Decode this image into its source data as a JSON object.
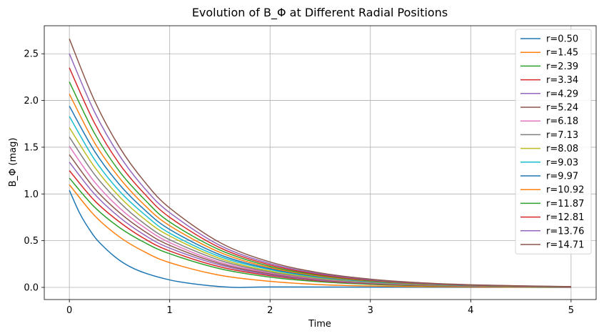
{
  "chart_data": {
    "type": "line",
    "title": "Evolution of B_Φ at Different Radial Positions",
    "xlabel": "Time",
    "ylabel": "B_Φ (mag)",
    "xlim": [
      -0.25,
      5.25
    ],
    "ylim": [
      -0.13,
      2.8
    ],
    "xticks": [
      0,
      1,
      2,
      3,
      4,
      5
    ],
    "yticks": [
      0.0,
      0.5,
      1.0,
      1.5,
      2.0,
      2.5
    ],
    "xtick_labels": [
      "0",
      "1",
      "2",
      "3",
      "4",
      "5"
    ],
    "ytick_labels": [
      "0.0",
      "0.5",
      "1.0",
      "1.5",
      "2.0",
      "2.5"
    ],
    "grid": true,
    "legend_position": "top-right",
    "series": [
      {
        "name": "r=0.50",
        "color": "#1f77b4",
        "x": [
          0,
          0.1,
          0.2,
          0.3,
          0.5,
          0.7,
          1.0,
          1.3,
          1.65,
          2.0,
          3.0,
          4.0,
          5.0
        ],
        "values": [
          1.04,
          0.8,
          0.62,
          0.48,
          0.29,
          0.175,
          0.08,
          0.03,
          0.0,
          0.005,
          0.003,
          0.001,
          0.0
        ]
      },
      {
        "name": "r=1.45",
        "color": "#ff7f0e",
        "x": [
          0,
          0.25,
          0.5,
          0.75,
          1.0,
          1.5,
          2.0,
          2.5,
          3.0,
          3.5,
          4.0,
          4.5,
          5.0
        ],
        "values": [
          1.1,
          0.77,
          0.54,
          0.38,
          0.265,
          0.13,
          0.065,
          0.03,
          0.015,
          0.008,
          0.004,
          0.002,
          0.001
        ]
      },
      {
        "name": "r=2.39",
        "color": "#2ca02c",
        "x": [
          0,
          0.25,
          0.5,
          0.75,
          1.0,
          1.5,
          2.0,
          2.5,
          3.0,
          3.5,
          4.0,
          4.5,
          5.0
        ],
        "values": [
          1.17,
          0.86,
          0.64,
          0.48,
          0.36,
          0.2,
          0.11,
          0.06,
          0.033,
          0.018,
          0.01,
          0.005,
          0.003
        ]
      },
      {
        "name": "r=3.34",
        "color": "#d62728",
        "x": [
          0,
          0.25,
          0.5,
          0.75,
          1.0,
          1.5,
          2.0,
          2.5,
          3.0,
          3.5,
          4.0,
          4.5,
          5.0
        ],
        "values": [
          1.25,
          0.93,
          0.7,
          0.52,
          0.39,
          0.22,
          0.125,
          0.07,
          0.04,
          0.022,
          0.012,
          0.007,
          0.004
        ]
      },
      {
        "name": "r=4.29",
        "color": "#9467bd",
        "x": [
          0,
          0.25,
          0.5,
          0.75,
          1.0,
          1.5,
          2.0,
          2.5,
          3.0,
          3.5,
          4.0,
          4.5,
          5.0
        ],
        "values": [
          1.34,
          1.0,
          0.75,
          0.56,
          0.42,
          0.24,
          0.135,
          0.076,
          0.043,
          0.024,
          0.013,
          0.008,
          0.004
        ]
      },
      {
        "name": "r=5.24",
        "color": "#8c564b",
        "x": [
          0,
          0.25,
          0.5,
          0.75,
          1.0,
          1.5,
          2.0,
          2.5,
          3.0,
          3.5,
          4.0,
          4.5,
          5.0
        ],
        "values": [
          1.42,
          1.06,
          0.8,
          0.6,
          0.45,
          0.255,
          0.145,
          0.082,
          0.046,
          0.026,
          0.015,
          0.008,
          0.005
        ]
      },
      {
        "name": "r=6.18",
        "color": "#e377c2",
        "x": [
          0,
          0.25,
          0.5,
          0.75,
          1.0,
          1.5,
          2.0,
          2.5,
          3.0,
          3.5,
          4.0,
          4.5,
          5.0
        ],
        "values": [
          1.51,
          1.13,
          0.85,
          0.64,
          0.48,
          0.27,
          0.155,
          0.088,
          0.05,
          0.028,
          0.016,
          0.009,
          0.005
        ]
      },
      {
        "name": "r=7.13",
        "color": "#7f7f7f",
        "x": [
          0,
          0.25,
          0.5,
          0.75,
          1.0,
          1.5,
          2.0,
          2.5,
          3.0,
          3.5,
          4.0,
          4.5,
          5.0
        ],
        "values": [
          1.61,
          1.21,
          0.91,
          0.68,
          0.51,
          0.29,
          0.165,
          0.094,
          0.053,
          0.03,
          0.017,
          0.01,
          0.006
        ]
      },
      {
        "name": "r=8.08",
        "color": "#bcbd22",
        "x": [
          0,
          0.25,
          0.5,
          0.75,
          1.0,
          1.5,
          2.0,
          2.5,
          3.0,
          3.5,
          4.0,
          4.5,
          5.0
        ],
        "values": [
          1.71,
          1.29,
          0.97,
          0.73,
          0.55,
          0.31,
          0.175,
          0.1,
          0.057,
          0.032,
          0.018,
          0.01,
          0.006
        ]
      },
      {
        "name": "r=9.03",
        "color": "#17becf",
        "x": [
          0,
          0.25,
          0.5,
          0.75,
          1.0,
          1.5,
          2.0,
          2.5,
          3.0,
          3.5,
          4.0,
          4.5,
          5.0
        ],
        "values": [
          1.83,
          1.37,
          1.03,
          0.78,
          0.58,
          0.33,
          0.19,
          0.107,
          0.06,
          0.034,
          0.019,
          0.011,
          0.006
        ]
      },
      {
        "name": "r=9.97",
        "color": "#1f77b4",
        "x": [
          0,
          0.25,
          0.5,
          0.75,
          1.0,
          1.5,
          2.0,
          2.5,
          3.0,
          3.5,
          4.0,
          4.5,
          5.0
        ],
        "values": [
          1.94,
          1.46,
          1.1,
          0.83,
          0.62,
          0.35,
          0.2,
          0.113,
          0.064,
          0.036,
          0.02,
          0.012,
          0.007
        ]
      },
      {
        "name": "r=10.92",
        "color": "#ff7f0e",
        "x": [
          0,
          0.25,
          0.5,
          0.75,
          1.0,
          1.5,
          2.0,
          2.5,
          3.0,
          3.5,
          4.0,
          4.5,
          5.0
        ],
        "values": [
          2.07,
          1.55,
          1.17,
          0.88,
          0.66,
          0.375,
          0.212,
          0.12,
          0.068,
          0.038,
          0.022,
          0.012,
          0.007
        ]
      },
      {
        "name": "r=11.87",
        "color": "#2ca02c",
        "x": [
          0,
          0.25,
          0.5,
          0.75,
          1.0,
          1.5,
          2.0,
          2.5,
          3.0,
          3.5,
          4.0,
          4.5,
          5.0
        ],
        "values": [
          2.2,
          1.65,
          1.24,
          0.94,
          0.7,
          0.4,
          0.225,
          0.128,
          0.072,
          0.041,
          0.023,
          0.013,
          0.007
        ]
      },
      {
        "name": "r=12.81",
        "color": "#d62728",
        "x": [
          0,
          0.25,
          0.5,
          0.75,
          1.0,
          1.5,
          2.0,
          2.5,
          3.0,
          3.5,
          4.0,
          4.5,
          5.0
        ],
        "values": [
          2.35,
          1.76,
          1.32,
          1.0,
          0.75,
          0.425,
          0.24,
          0.136,
          0.077,
          0.043,
          0.025,
          0.014,
          0.008
        ]
      },
      {
        "name": "r=13.76",
        "color": "#9467bd",
        "x": [
          0,
          0.25,
          0.5,
          0.75,
          1.0,
          1.5,
          2.0,
          2.5,
          3.0,
          3.5,
          4.0,
          4.5,
          5.0
        ],
        "values": [
          2.5,
          1.88,
          1.41,
          1.06,
          0.8,
          0.45,
          0.255,
          0.145,
          0.082,
          0.046,
          0.026,
          0.015,
          0.008
        ]
      },
      {
        "name": "r=14.71",
        "color": "#8c564b",
        "x": [
          0,
          0.25,
          0.5,
          0.75,
          1.0,
          1.5,
          2.0,
          2.5,
          3.0,
          3.5,
          4.0,
          4.5,
          5.0
        ],
        "values": [
          2.66,
          2.0,
          1.5,
          1.13,
          0.85,
          0.48,
          0.272,
          0.155,
          0.088,
          0.05,
          0.028,
          0.016,
          0.009
        ]
      }
    ]
  }
}
